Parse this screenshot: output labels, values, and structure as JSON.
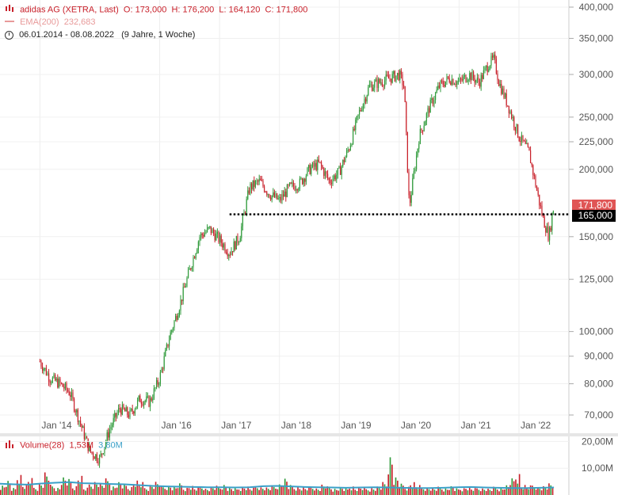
{
  "header": {
    "instrument": "adidas AG (XETRA, Last)",
    "open": "O: 173,000",
    "high": "H: 176,200",
    "low": "L: 164,120",
    "close": "C: 171,800",
    "ema_label": "EMA(200)",
    "ema_value": "232,683",
    "range": "06.01.2014 - 08.08.2022",
    "duration": "(9 Jahre, 1 Woche)"
  },
  "volume_legend": {
    "label": "Volume(28)",
    "value1": "1,53M",
    "value2": "3,80M"
  },
  "price_tags": {
    "last": "171,800",
    "line": "165,000"
  },
  "colors": {
    "up": "#2f9a3a",
    "down": "#c8202a",
    "ema": "#3aa0c8",
    "level_line": "#000000",
    "tag_last": "#e05555",
    "tag_line": "#000000"
  },
  "chart_data": {
    "type": "line",
    "title": "adidas AG (XETRA, Last)",
    "y_scale": "log",
    "ylim": [
      65,
      410
    ],
    "y_ticks": [
      70,
      80,
      90,
      100,
      125,
      150,
      200,
      225,
      250,
      300,
      350,
      400
    ],
    "y_tick_labels": [
      "70,000",
      "80,000",
      "90,000",
      "100,000",
      "125,000",
      "150,000",
      "200,000",
      "225,000",
      "250,000",
      "300,000",
      "350,000",
      "400,000"
    ],
    "x_tick_labels": [
      "Jan '14",
      "Jan '16",
      "Jan '17",
      "Jan '18",
      "Jan '19",
      "Jan '20",
      "Jan '21",
      "Jan '22"
    ],
    "x_tick_dates": [
      "2014-01",
      "2016-01",
      "2017-01",
      "2018-01",
      "2019-01",
      "2020-01",
      "2021-01",
      "2022-01"
    ],
    "series": [
      {
        "x": [
          "2014-01",
          "2014-03",
          "2014-05",
          "2014-07",
          "2014-09",
          "2014-11",
          "2015-01",
          "2015-03",
          "2015-05",
          "2015-07",
          "2015-09",
          "2015-11",
          "2016-01",
          "2016-03",
          "2016-05",
          "2016-07",
          "2016-09",
          "2016-11",
          "2017-01",
          "2017-03",
          "2017-05",
          "2017-07",
          "2017-09",
          "2017-11",
          "2018-01",
          "2018-03",
          "2018-05",
          "2018-07",
          "2018-09",
          "2018-11",
          "2019-01",
          "2019-03",
          "2019-05",
          "2019-07",
          "2019-09",
          "2019-11",
          "2020-01",
          "2020-02",
          "2020-03",
          "2020-05",
          "2020-07",
          "2020-09",
          "2020-11",
          "2021-01",
          "2021-03",
          "2021-05",
          "2021-07",
          "2021-08",
          "2021-09",
          "2021-11",
          "2022-01",
          "2022-03",
          "2022-05",
          "2022-06",
          "2022-07",
          "2022-08"
        ],
        "y": [
          88,
          82,
          80,
          77,
          68,
          60,
          58,
          66,
          72,
          70,
          75,
          74,
          82,
          98,
          112,
          130,
          150,
          155,
          148,
          140,
          150,
          185,
          190,
          180,
          175,
          185,
          188,
          200,
          205,
          190,
          198,
          220,
          255,
          285,
          290,
          295,
          300,
          285,
          170,
          230,
          260,
          285,
          295,
          290,
          300,
          290,
          315,
          320,
          290,
          260,
          230,
          215,
          175,
          160,
          150,
          171.8
        ]
      }
    ],
    "ema200_value": 232.683,
    "level_line": 165,
    "volume": {
      "ylim": [
        0,
        21
      ],
      "y_ticks": [
        10,
        20
      ],
      "y_tick_labels": [
        "10,00M",
        "20,00M"
      ],
      "bars": [
        3.2,
        4.5,
        2.1,
        6.8,
        3.4,
        5.1,
        2.6,
        4.0,
        7.2,
        3.1,
        2.4,
        5.6,
        4.8,
        3.0,
        6.1,
        2.2,
        3.8,
        4.4,
        3.6,
        5.0,
        2.9,
        4.1,
        3.3,
        2.7,
        4.6,
        3.9,
        2.5,
        3.4,
        4.2,
        2.8,
        3.1,
        2.6,
        3.5,
        2.4,
        2.9,
        2.2,
        3.0,
        2.1,
        2.6,
        2.8,
        3.4,
        2.3,
        2.0,
        2.5,
        2.7,
        2.2,
        3.1,
        2.6,
        2.4,
        2.9,
        3.6,
        5.2,
        3.0,
        2.7,
        2.5,
        2.3,
        2.8,
        2.2,
        3.3,
        2.6,
        2.1,
        2.4,
        2.0,
        2.9,
        2.2,
        2.5,
        2.1,
        2.3,
        2.7,
        3.9,
        12.8,
        5.6,
        3.4,
        2.8,
        4.1,
        3.0,
        2.6,
        2.4,
        2.1,
        2.5,
        2.2,
        2.8,
        2.0,
        2.3,
        2.6,
        2.1,
        2.4,
        2.2,
        2.0,
        2.5,
        2.3,
        3.1,
        5.0,
        7.1,
        3.2,
        2.9,
        3.4,
        2.6,
        2.8,
        3.5
      ],
      "ema_line": [
        4.2,
        4.0,
        3.9,
        4.3,
        4.6,
        4.8,
        4.4,
        4.3,
        4.1,
        4.0,
        3.7,
        3.4,
        3.2,
        3.1,
        3.0,
        2.9,
        2.9,
        2.8,
        2.9,
        3.3,
        3.4,
        3.2,
        3.0,
        2.9,
        2.8,
        2.7,
        2.8,
        2.9,
        2.8,
        2.7,
        2.6,
        2.6,
        2.7,
        2.9,
        3.0,
        2.8,
        2.7,
        2.6,
        2.6,
        2.7,
        2.8
      ]
    }
  }
}
